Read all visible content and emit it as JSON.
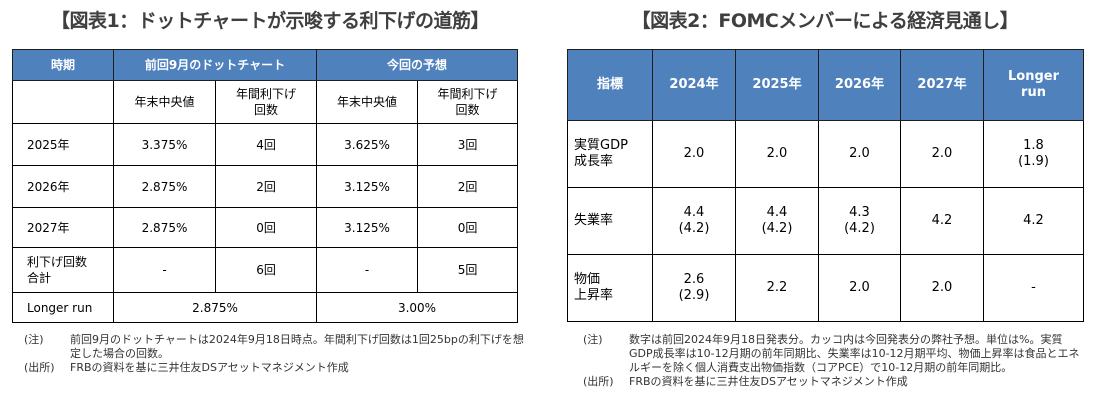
{
  "figure1": {
    "title": "【図表1：ドットチャートが示唆する利下げの道筋】",
    "headers": {
      "period": "時期",
      "prev": "前回9月のドットチャート",
      "current": "今回の予想"
    },
    "subheaders": [
      "年末中央値",
      "年間利下げ\n回数",
      "年末中央値",
      "年間利下げ\n回数"
    ],
    "rows": [
      {
        "label": "2025年",
        "prev_median": "3.375%",
        "prev_cuts": "4回",
        "cur_median": "3.625%",
        "cur_cuts": "3回"
      },
      {
        "label": "2026年",
        "prev_median": "2.875%",
        "prev_cuts": "2回",
        "cur_median": "3.125%",
        "cur_cuts": "2回"
      },
      {
        "label": "2027年",
        "prev_median": "2.875%",
        "prev_cuts": "0回",
        "cur_median": "3.125%",
        "cur_cuts": "0回"
      },
      {
        "label": "利下げ回数\n合計",
        "prev_median": "-",
        "prev_cuts": "6回",
        "cur_median": "-",
        "cur_cuts": "5回"
      }
    ],
    "longer_run": {
      "label": "Longer run",
      "prev": "2.875%",
      "current": "3.00%"
    },
    "note_label": "(注)",
    "note": "前回9月のドットチャートは2024年9月18日時点。年間利下げ回数は1回25bpの利下げを想定した場合の回数。",
    "source_label": "(出所)",
    "source": "FRBの資料を基に三井住友DSアセットマネジメント作成"
  },
  "figure2": {
    "title": "【図表2：FOMCメンバーによる経済見通し】",
    "headers": [
      "指標",
      "2024年",
      "2025年",
      "2026年",
      "2027年",
      "Longer\nrun"
    ],
    "rows": [
      {
        "label": "実質GDP\n成長率",
        "values": [
          "2.0",
          "2.0",
          "2.0",
          "2.0",
          "1.8\n(1.9)"
        ]
      },
      {
        "label": "失業率",
        "values": [
          "4.4\n(4.2)",
          "4.4\n(4.2)",
          "4.3\n(4.2)",
          "4.2",
          "4.2"
        ]
      },
      {
        "label": "物価\n上昇率",
        "values": [
          "2.6\n(2.9)",
          "2.2",
          "2.0",
          "2.0",
          "-"
        ]
      }
    ],
    "note_label": "(注)",
    "note": "数字は前回2024年9月18日発表分。カッコ内は今回発表分の弊社予想。単位は%。実質GDP成長率は10-12月期の前年同期比、失業率は10-12月期平均、物価上昇率は食品とエネルギーを除く個人消費支出物価指数（コアPCE）で10-12月期の前年同期比。",
    "source_label": "(出所)",
    "source": "FRBの資料を基に三井住友DSアセットマネジメント作成"
  },
  "colors": {
    "header_bg": "#4f81bd"
  }
}
